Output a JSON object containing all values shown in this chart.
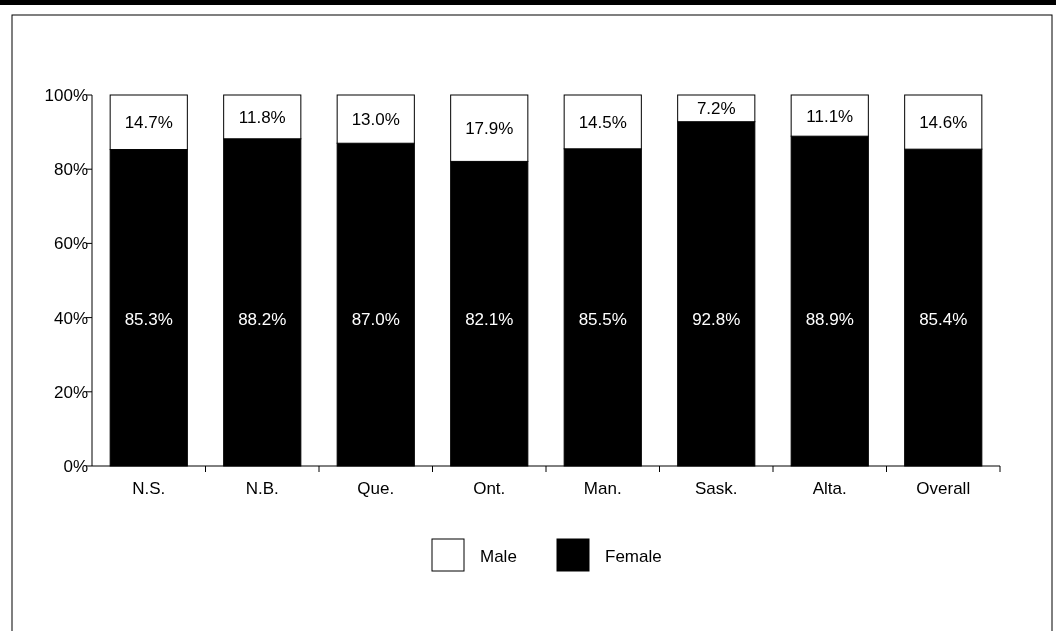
{
  "chart_data": {
    "type": "bar",
    "stacked": true,
    "categories": [
      "N.S.",
      "N.B.",
      "Que.",
      "Ont.",
      "Man.",
      "Sask.",
      "Alta.",
      "Overall"
    ],
    "series": [
      {
        "name": "Female",
        "color": "#000000",
        "values": [
          85.3,
          88.2,
          87.0,
          82.1,
          85.5,
          92.8,
          88.9,
          85.4
        ],
        "value_labels": [
          "85.3%",
          "88.2%",
          "87.0%",
          "82.1%",
          "85.5%",
          "92.8%",
          "88.9%",
          "85.4%"
        ]
      },
      {
        "name": "Male",
        "color": "#ffffff",
        "values": [
          14.7,
          11.8,
          13.0,
          17.9,
          14.5,
          7.2,
          11.1,
          14.6
        ],
        "value_labels": [
          "14.7%",
          "11.8%",
          "13.0%",
          "17.9%",
          "14.5%",
          "7.2%",
          "11.1%",
          "14.6%"
        ]
      }
    ],
    "ylim": [
      0,
      100
    ],
    "yticks": [
      {
        "value": 0,
        "label": "0%"
      },
      {
        "value": 20,
        "label": "20%"
      },
      {
        "value": 40,
        "label": "40%"
      },
      {
        "value": 60,
        "label": "60%"
      },
      {
        "value": 80,
        "label": "80%"
      },
      {
        "value": 100,
        "label": "100%"
      }
    ],
    "legend": "bottom"
  }
}
